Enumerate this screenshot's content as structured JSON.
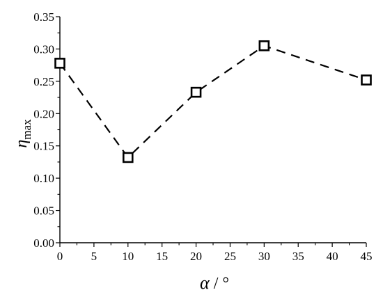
{
  "chart_data": {
    "type": "line",
    "x": [
      0,
      10,
      20,
      30,
      45
    ],
    "series": [
      {
        "values": [
          0.278,
          0.132,
          0.233,
          0.305,
          0.252
        ]
      }
    ],
    "xlim": [
      0,
      45
    ],
    "ylim": [
      0.0,
      0.35
    ],
    "xticks": [
      0,
      5,
      10,
      15,
      20,
      25,
      30,
      35,
      40,
      45
    ],
    "yticks": [
      0.0,
      0.05,
      0.1,
      0.15,
      0.2,
      0.25,
      0.3,
      0.35
    ],
    "xtick_labels": [
      "0",
      "5",
      "10",
      "15",
      "20",
      "25",
      "30",
      "35",
      "40",
      "45"
    ],
    "ytick_labels": [
      "0.00",
      "0.05",
      "0.10",
      "0.15",
      "0.20",
      "0.25",
      "0.30",
      "0.35"
    ],
    "xlabel": {
      "symbol": "α",
      "unit": " / °"
    },
    "ylabel": {
      "symbol": "η",
      "subscript": "max"
    },
    "line_style": "dashed",
    "marker": "open-square",
    "color": "#000000",
    "grid": false
  }
}
